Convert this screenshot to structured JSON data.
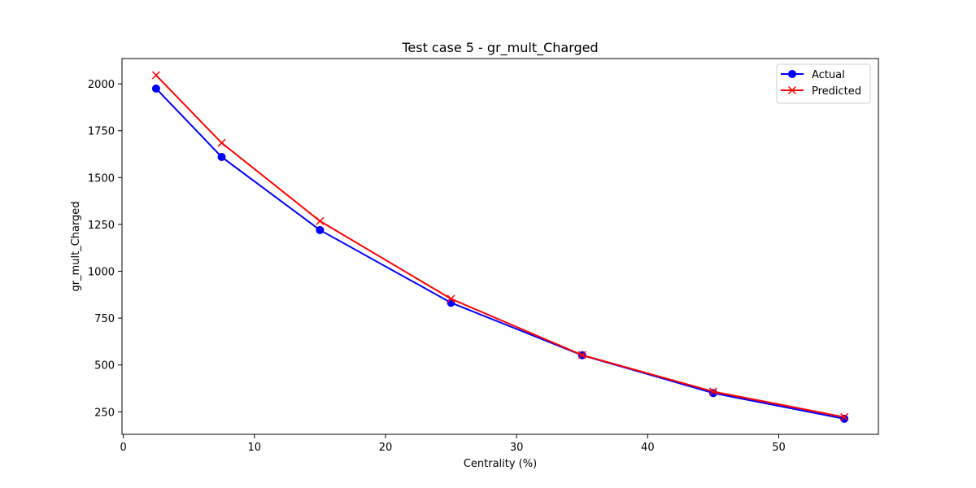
{
  "chart_data": {
    "type": "line",
    "title": "Test case 5 - gr_mult_Charged",
    "xlabel": "Centrality (%)",
    "ylabel": "gr_mult_Charged",
    "xlim": [
      -0.1,
      57.6
    ],
    "ylim": [
      130,
      2135
    ],
    "xticks": [
      0,
      10,
      20,
      30,
      40,
      50
    ],
    "yticks": [
      250,
      500,
      750,
      1000,
      1250,
      1500,
      1750,
      2000
    ],
    "x": [
      2.5,
      7.5,
      15,
      25,
      35,
      45,
      55
    ],
    "series": [
      {
        "name": "Actual",
        "values": [
          1975,
          1610,
          1220,
          832,
          552,
          350,
          213
        ],
        "color": "#0000ff",
        "marker": "circle"
      },
      {
        "name": "Predicted",
        "values": [
          2046,
          1685,
          1268,
          853,
          553,
          358,
          222
        ],
        "color": "#ff0000",
        "marker": "x"
      }
    ],
    "grid": false,
    "legend_position": "top-right"
  }
}
